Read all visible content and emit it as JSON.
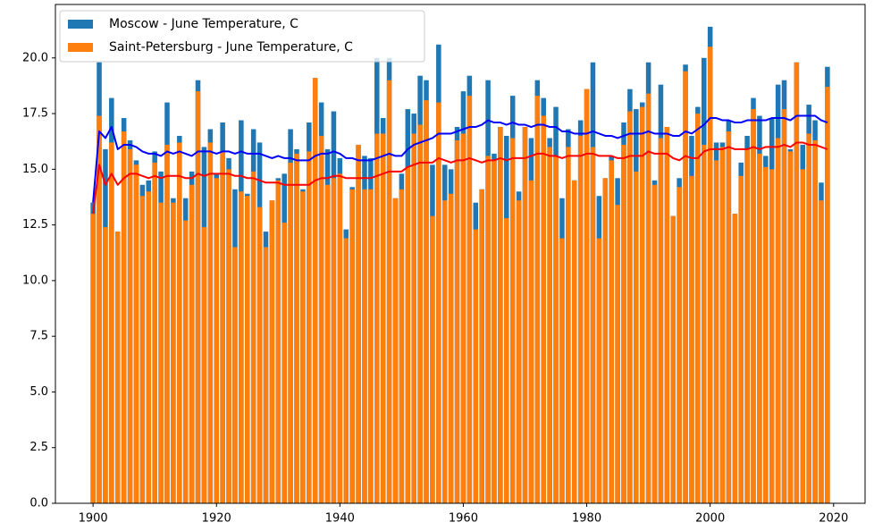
{
  "chart_data": {
    "type": "bar",
    "x": [
      1900,
      1901,
      1902,
      1903,
      1904,
      1905,
      1906,
      1907,
      1908,
      1909,
      1910,
      1911,
      1912,
      1913,
      1914,
      1915,
      1916,
      1917,
      1918,
      1919,
      1920,
      1921,
      1922,
      1923,
      1924,
      1925,
      1926,
      1927,
      1928,
      1929,
      1930,
      1931,
      1932,
      1933,
      1934,
      1935,
      1936,
      1937,
      1938,
      1939,
      1940,
      1941,
      1942,
      1943,
      1944,
      1945,
      1946,
      1947,
      1948,
      1949,
      1950,
      1951,
      1952,
      1953,
      1954,
      1955,
      1956,
      1957,
      1958,
      1959,
      1960,
      1961,
      1962,
      1963,
      1964,
      1965,
      1966,
      1967,
      1968,
      1969,
      1970,
      1971,
      1972,
      1973,
      1974,
      1975,
      1976,
      1977,
      1978,
      1979,
      1980,
      1981,
      1982,
      1983,
      1984,
      1985,
      1986,
      1987,
      1988,
      1989,
      1990,
      1991,
      1992,
      1993,
      1994,
      1995,
      1996,
      1997,
      1998,
      1999,
      2000,
      2001,
      2002,
      2003,
      2004,
      2005,
      2006,
      2007,
      2008,
      2009,
      2010,
      2011,
      2012,
      2013,
      2014,
      2015,
      2016,
      2017,
      2018,
      2019
    ],
    "series": [
      {
        "name": "Moscow - June Temperature, C",
        "color": "#1f77b4",
        "values": [
          13.5,
          19.8,
          15.9,
          18.2,
          12.2,
          17.3,
          16.3,
          15.4,
          14.3,
          14.5,
          15.8,
          14.9,
          18.0,
          13.7,
          16.5,
          13.7,
          14.9,
          19.0,
          16.0,
          16.8,
          14.8,
          17.1,
          15.5,
          14.1,
          17.2,
          13.9,
          16.8,
          16.2,
          12.2,
          13.6,
          14.6,
          14.8,
          16.8,
          15.9,
          14.1,
          17.1,
          19.1,
          18.0,
          15.9,
          17.6,
          15.5,
          12.3,
          14.2,
          16.1,
          15.6,
          15.5,
          20.0,
          17.3,
          20.0,
          13.7,
          14.8,
          17.7,
          17.5,
          19.2,
          19.0,
          15.2,
          20.6,
          15.2,
          15.0,
          16.9,
          18.5,
          19.2,
          13.5,
          14.1,
          19.0,
          15.7,
          16.9,
          16.5,
          18.3,
          14.0,
          16.9,
          16.4,
          19.0,
          18.2,
          16.4,
          17.8,
          13.7,
          16.8,
          14.5,
          17.2,
          18.6,
          19.8,
          13.8,
          14.6,
          15.6,
          14.6,
          17.1,
          18.6,
          17.7,
          18.0,
          19.8,
          14.5,
          18.8,
          16.9,
          12.9,
          14.6,
          19.7,
          16.5,
          17.8,
          20.0,
          21.4,
          16.2,
          16.2,
          17.2,
          13.0,
          15.3,
          16.5,
          18.2,
          17.4,
          15.6,
          17.3,
          18.8,
          19.0,
          15.9,
          19.8,
          16.1,
          17.9,
          17.2,
          14.4,
          19.6
        ]
      },
      {
        "name": "Saint-Petersburg - June Temperature, C",
        "color": "#ff7f0e",
        "values": [
          13.0,
          17.4,
          12.4,
          16.2,
          12.2,
          16.7,
          15.9,
          15.2,
          13.8,
          14.0,
          15.3,
          13.5,
          16.1,
          13.5,
          16.2,
          12.7,
          14.3,
          18.5,
          12.4,
          16.2,
          14.6,
          15.8,
          15.0,
          11.5,
          14.0,
          13.8,
          14.9,
          13.3,
          11.5,
          13.6,
          14.5,
          12.6,
          15.3,
          15.7,
          14.0,
          15.8,
          19.1,
          16.5,
          14.3,
          14.6,
          14.8,
          11.9,
          14.1,
          16.1,
          14.1,
          14.1,
          16.6,
          16.6,
          19.0,
          13.7,
          14.1,
          15.1,
          16.6,
          17.0,
          18.1,
          12.9,
          18.0,
          13.6,
          13.9,
          16.3,
          16.6,
          18.3,
          12.3,
          14.1,
          15.6,
          15.4,
          16.9,
          12.8,
          16.4,
          13.6,
          16.9,
          14.5,
          18.3,
          17.4,
          16.0,
          15.6,
          11.9,
          16.0,
          14.5,
          16.5,
          18.6,
          16.0,
          11.9,
          14.6,
          15.4,
          13.4,
          16.1,
          17.6,
          14.9,
          17.8,
          18.4,
          14.3,
          16.4,
          16.9,
          12.9,
          14.2,
          19.4,
          14.7,
          17.5,
          16.1,
          20.5,
          15.4,
          16.0,
          16.7,
          13.0,
          14.7,
          15.9,
          17.7,
          15.7,
          15.1,
          15.0,
          16.4,
          17.7,
          15.8,
          19.8,
          15.0,
          16.6,
          16.3,
          13.6,
          18.7
        ]
      }
    ],
    "lines": [
      {
        "color": "#0000ff",
        "values": [
          13.5,
          16.7,
          16.4,
          16.9,
          15.9,
          16.1,
          16.1,
          16.0,
          15.8,
          15.7,
          15.7,
          15.6,
          15.8,
          15.7,
          15.8,
          15.7,
          15.6,
          15.8,
          15.8,
          15.8,
          15.7,
          15.8,
          15.8,
          15.7,
          15.8,
          15.7,
          15.7,
          15.7,
          15.6,
          15.5,
          15.6,
          15.5,
          15.5,
          15.4,
          15.4,
          15.4,
          15.6,
          15.7,
          15.7,
          15.8,
          15.7,
          15.5,
          15.5,
          15.4,
          15.4,
          15.4,
          15.5,
          15.6,
          15.7,
          15.6,
          15.6,
          15.9,
          16.1,
          16.2,
          16.3,
          16.4,
          16.6,
          16.6,
          16.6,
          16.7,
          16.8,
          16.9,
          16.9,
          17.0,
          17.2,
          17.1,
          17.1,
          17.0,
          17.1,
          17.0,
          17.0,
          16.9,
          17.0,
          17.0,
          16.9,
          16.9,
          16.7,
          16.7,
          16.6,
          16.6,
          16.6,
          16.7,
          16.6,
          16.5,
          16.5,
          16.4,
          16.5,
          16.6,
          16.6,
          16.6,
          16.7,
          16.6,
          16.6,
          16.6,
          16.5,
          16.5,
          16.7,
          16.6,
          16.8,
          17.0,
          17.3,
          17.3,
          17.2,
          17.2,
          17.1,
          17.1,
          17.2,
          17.2,
          17.2,
          17.2,
          17.3,
          17.3,
          17.3,
          17.2,
          17.4,
          17.4,
          17.4,
          17.4,
          17.2,
          17.1
        ]
      },
      {
        "color": "#ff0000",
        "values": [
          13.0,
          15.2,
          14.3,
          14.8,
          14.3,
          14.6,
          14.8,
          14.8,
          14.7,
          14.6,
          14.7,
          14.6,
          14.7,
          14.7,
          14.7,
          14.6,
          14.6,
          14.8,
          14.7,
          14.8,
          14.8,
          14.8,
          14.8,
          14.7,
          14.7,
          14.6,
          14.6,
          14.5,
          14.4,
          14.4,
          14.4,
          14.3,
          14.3,
          14.3,
          14.3,
          14.3,
          14.5,
          14.6,
          14.6,
          14.7,
          14.7,
          14.6,
          14.6,
          14.6,
          14.6,
          14.6,
          14.7,
          14.8,
          14.9,
          14.9,
          14.9,
          15.1,
          15.2,
          15.3,
          15.3,
          15.3,
          15.5,
          15.4,
          15.3,
          15.4,
          15.4,
          15.5,
          15.4,
          15.3,
          15.4,
          15.4,
          15.5,
          15.4,
          15.5,
          15.5,
          15.5,
          15.6,
          15.7,
          15.7,
          15.6,
          15.6,
          15.5,
          15.6,
          15.6,
          15.6,
          15.7,
          15.7,
          15.6,
          15.6,
          15.6,
          15.5,
          15.5,
          15.6,
          15.6,
          15.6,
          15.8,
          15.7,
          15.7,
          15.7,
          15.5,
          15.4,
          15.6,
          15.5,
          15.5,
          15.8,
          15.9,
          15.9,
          15.9,
          16.0,
          15.9,
          15.9,
          15.9,
          16.0,
          15.9,
          16.0,
          16.0,
          16.0,
          16.1,
          16.0,
          16.2,
          16.2,
          16.1,
          16.1,
          16.0,
          15.9
        ]
      }
    ],
    "bar_width": 0.8,
    "xlim": [
      1893.9,
      2025.1
    ],
    "xticks": [
      1900,
      1920,
      1940,
      1960,
      1980,
      2000,
      2020
    ],
    "ylim": [
      0,
      22.4
    ],
    "yticks": [
      {
        "value": 0,
        "label": "0.0"
      },
      2.5,
      {
        "value": 5,
        "label": "5.0"
      },
      7.5,
      {
        "value": 10,
        "label": "10.0"
      },
      12.5,
      {
        "value": 15,
        "label": "15.0"
      },
      17.5,
      {
        "value": 20,
        "label": "20.0"
      }
    ],
    "legend": "upper left"
  }
}
